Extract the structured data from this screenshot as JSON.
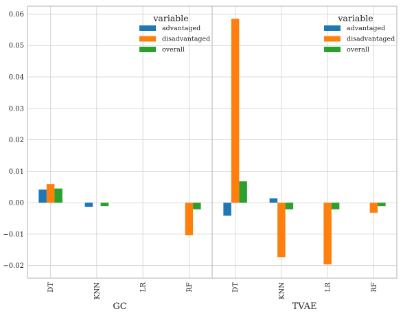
{
  "chart_data": [
    {
      "type": "bar",
      "panel": "GC",
      "categories": [
        "DT",
        "KNN",
        "LR",
        "RF"
      ],
      "series": [
        {
          "name": "advantaged",
          "values": [
            0.0042,
            -0.0013,
            0.0,
            0.0
          ]
        },
        {
          "name": "disadvantaged",
          "values": [
            0.0059,
            0.0,
            0.0,
            -0.0103
          ]
        },
        {
          "name": "overall",
          "values": [
            0.0045,
            -0.0011,
            0.0,
            -0.0021
          ]
        }
      ],
      "ylim": [
        -0.024,
        0.0625
      ]
    },
    {
      "type": "bar",
      "panel": "TVAE",
      "categories": [
        "DT",
        "KNN",
        "LR",
        "RF"
      ],
      "series": [
        {
          "name": "advantaged",
          "values": [
            -0.0041,
            0.0014,
            0.0,
            0.0
          ]
        },
        {
          "name": "disadvantaged",
          "values": [
            0.0585,
            -0.0173,
            -0.0196,
            -0.0032
          ]
        },
        {
          "name": "overall",
          "values": [
            0.0068,
            -0.0021,
            -0.0021,
            -0.0011
          ]
        }
      ],
      "ylim": [
        -0.024,
        0.0625
      ]
    }
  ],
  "yticks": [
    "0.06",
    "0.05",
    "0.04",
    "0.03",
    "0.02",
    "0.01",
    "0.00",
    "−0.01",
    "−0.02"
  ],
  "ytick_values": [
    0.06,
    0.05,
    0.04,
    0.03,
    0.02,
    0.01,
    0.0,
    -0.01,
    -0.02
  ],
  "legend": {
    "title": "variable",
    "entries": [
      "advantaged",
      "disadvantaged",
      "overall"
    ],
    "placement": "upper-right of each panel"
  },
  "group_labels": [
    "GC",
    "TVAE"
  ],
  "colors": {
    "advantaged": "#1f77b4",
    "disadvantaged": "#ff7f0e",
    "overall": "#2ca02c",
    "grid": "#cfcfcf",
    "axes": "#bdbdbd"
  },
  "grid": true
}
